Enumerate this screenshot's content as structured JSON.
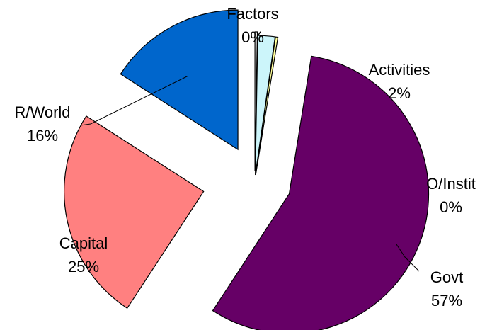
{
  "chart_data": {
    "type": "pie",
    "exploded": true,
    "slices": [
      {
        "name": "Factors",
        "label": "Factors",
        "value_label": "0%",
        "value": 0,
        "color": "#ffffff"
      },
      {
        "name": "Activities",
        "label": "Activities",
        "value_label": "2%",
        "value": 2,
        "color": "#ccf5fa"
      },
      {
        "name": "O/Instit",
        "label": "O/Instit",
        "value_label": "0%",
        "value": 0,
        "color": "#ffff99"
      },
      {
        "name": "Govt",
        "label": "Govt",
        "value_label": "57%",
        "value": 57,
        "color": "#660066"
      },
      {
        "name": "Capital",
        "label": "Capital",
        "value_label": "25%",
        "value": 25,
        "color": "#ff8080"
      },
      {
        "name": "R/World",
        "label": "R/World",
        "value_label": "16%",
        "value": 16,
        "color": "#0066cc"
      }
    ]
  }
}
